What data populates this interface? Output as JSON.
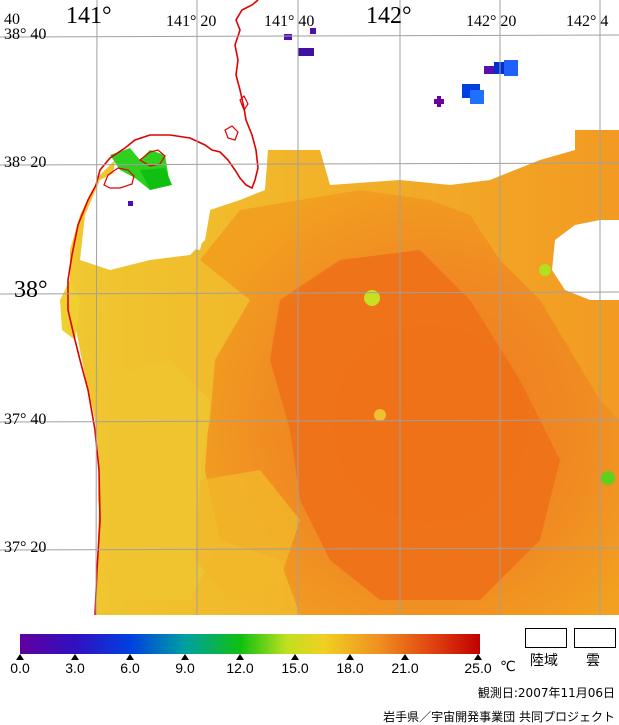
{
  "map": {
    "lon_labels_big": [
      "141°",
      "142°"
    ],
    "lon_labels_small": [
      "141° 20",
      "141° 40",
      "142° 20",
      "142° 4"
    ],
    "lon_label_left_edge": "40",
    "lat_labels": [
      "38° 40",
      "38° 20",
      "38°",
      "37° 40",
      "37° 20"
    ]
  },
  "legend": {
    "ticks": [
      "0.0",
      "3.0",
      "6.0",
      "9.0",
      "12.0",
      "15.0",
      "18.0",
      "21.0",
      "25.0"
    ],
    "unit": "℃",
    "land_label": "陸域",
    "cloud_label": "雲",
    "colors": {
      "low": "#5a00a0",
      "blue": "#0030d0",
      "green": "#10c010",
      "yellow": "#e8e020",
      "orange": "#f08020",
      "red": "#c00000",
      "coast": "#e00000",
      "grid": "#a0a0a0"
    }
  },
  "footer": {
    "observation_date": "観測日:2007年11月06日",
    "credit": "岩手県／宇宙開発事業団 共同プロジェクト"
  }
}
